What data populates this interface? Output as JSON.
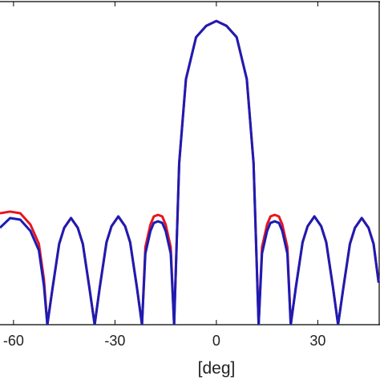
{
  "chart_data": {
    "type": "line",
    "xlabel": "[deg]",
    "x": [
      -64,
      -61,
      -58,
      -55,
      -52.5,
      -51,
      -50,
      -48.5,
      -46.5,
      -45,
      -43,
      -41,
      -39.5,
      -37.5,
      -36,
      -34.5,
      -32.5,
      -31,
      -29,
      -27,
      -25.5,
      -23.5,
      -22,
      -21,
      -19.5,
      -18.5,
      -17.25,
      -16,
      -15,
      -13.5,
      -12.5,
      -11,
      -9,
      -6,
      -3,
      0,
      3,
      6,
      9,
      11,
      12.5,
      13.5,
      15,
      16,
      17.25,
      18.5,
      19.5,
      21,
      22,
      23.5,
      25.5,
      27,
      29,
      31,
      32.5,
      34.5,
      36,
      37.5,
      39.5,
      41,
      43,
      45,
      46.5,
      48
    ],
    "series": [
      {
        "color": "#e8141e",
        "values": [
          0.345,
          0.35,
          0.345,
          0.31,
          0.25,
          0.14,
          0,
          0.11,
          0.25,
          0.3,
          0.33,
          0.3,
          0.25,
          0.11,
          0,
          0.115,
          0.255,
          0.305,
          0.335,
          0.305,
          0.255,
          0.115,
          0,
          0.24,
          0.31,
          0.335,
          0.34,
          0.335,
          0.31,
          0.24,
          0,
          0.5,
          0.76,
          0.89,
          0.925,
          0.94,
          0.925,
          0.89,
          0.76,
          0.5,
          0,
          0.24,
          0.31,
          0.335,
          0.34,
          0.335,
          0.31,
          0.24,
          0,
          0.115,
          0.255,
          0.305,
          0.335,
          0.305,
          0.255,
          0.115,
          0,
          0.11,
          0.25,
          0.3,
          0.33,
          0.3,
          0.25,
          0.13
        ]
      },
      {
        "color": "#1c1cb4",
        "values": [
          0.3,
          0.33,
          0.325,
          0.29,
          0.23,
          0.12,
          0,
          0.11,
          0.25,
          0.3,
          0.33,
          0.3,
          0.25,
          0.11,
          0,
          0.115,
          0.255,
          0.305,
          0.335,
          0.305,
          0.255,
          0.115,
          0,
          0.22,
          0.29,
          0.315,
          0.32,
          0.315,
          0.29,
          0.22,
          0,
          0.5,
          0.76,
          0.89,
          0.925,
          0.94,
          0.925,
          0.89,
          0.76,
          0.5,
          0,
          0.22,
          0.29,
          0.315,
          0.32,
          0.315,
          0.29,
          0.22,
          0,
          0.115,
          0.255,
          0.305,
          0.335,
          0.305,
          0.255,
          0.115,
          0,
          0.11,
          0.25,
          0.3,
          0.33,
          0.3,
          0.25,
          0.13
        ]
      }
    ],
    "xlim": [
      -64,
      48.4
    ],
    "ylim": [
      0,
      1
    ],
    "xticks": [
      -60,
      -30,
      0,
      30
    ]
  }
}
